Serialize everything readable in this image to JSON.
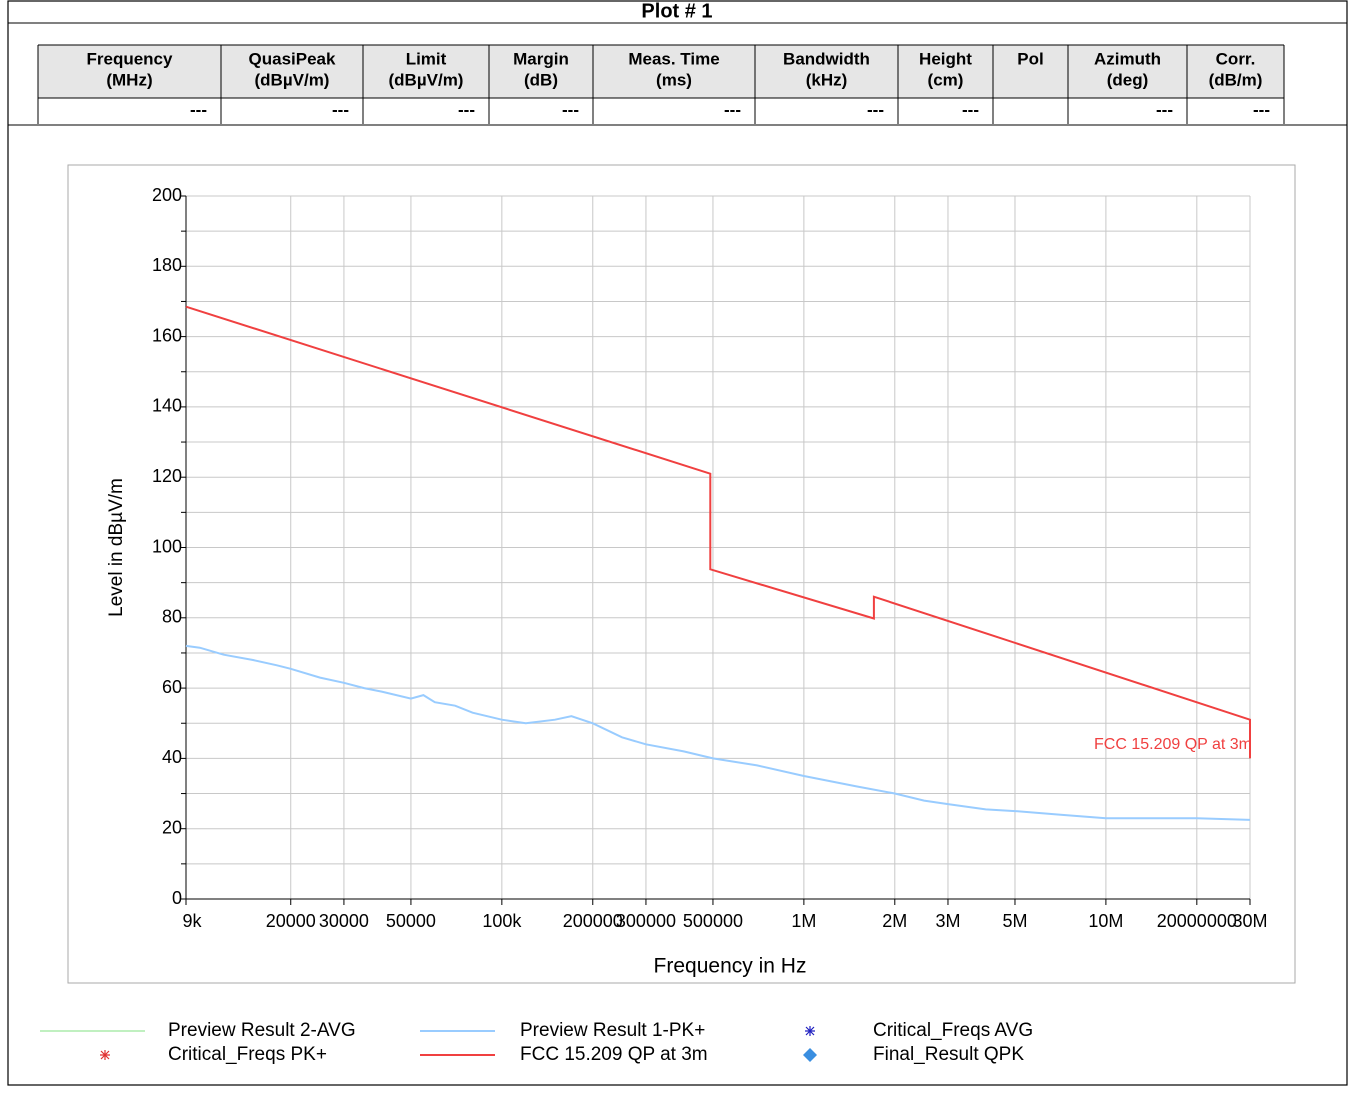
{
  "header": {
    "title": "Plot # 1"
  },
  "table": {
    "columns": [
      {
        "name": "Frequency",
        "unit": "(MHz)"
      },
      {
        "name": "QuasiPeak",
        "unit": "(dBµV/m)"
      },
      {
        "name": "Limit",
        "unit": "(dBµV/m)"
      },
      {
        "name": "Margin",
        "unit": "(dB)"
      },
      {
        "name": "Meas. Time",
        "unit": "(ms)"
      },
      {
        "name": "Bandwidth",
        "unit": "(kHz)"
      },
      {
        "name": "Height",
        "unit": "(cm)"
      },
      {
        "name": "Pol"
      },
      {
        "name": "Azimuth",
        "unit": "(deg)"
      },
      {
        "name": "Corr.",
        "unit": "(dB/m)"
      }
    ],
    "rows": [
      [
        "---",
        "---",
        "---",
        "---",
        "---",
        "---",
        "---",
        null,
        "---",
        "---"
      ]
    ]
  },
  "chart_data": {
    "type": "line",
    "xlabel": "Frequency in Hz",
    "ylabel": "Level in dBµV/m",
    "xscale": "log",
    "xlim": [
      9000,
      30000000
    ],
    "xticks": [
      {
        "value": 9000,
        "label": "9k"
      },
      20000,
      30000,
      50000,
      {
        "value": 100000,
        "label": "100k"
      },
      200000,
      300000,
      500000,
      {
        "value": 1000000,
        "label": "1M"
      },
      {
        "value": 2000000,
        "label": "2M"
      },
      {
        "value": 3000000,
        "label": "3M"
      },
      {
        "value": 5000000,
        "label": "5M"
      },
      {
        "value": 10000000,
        "label": "10M"
      },
      20000000,
      {
        "value": 30000000,
        "label": "30M"
      }
    ],
    "ylim": [
      0,
      200
    ],
    "yticks": [
      0,
      20,
      40,
      60,
      80,
      100,
      120,
      140,
      160,
      180,
      200
    ],
    "yminorticks": [
      10,
      30,
      50,
      70,
      90,
      110,
      130,
      150,
      170,
      190
    ],
    "grid": true,
    "series": [
      {
        "name": "Preview Result 2-AVG",
        "color": "#80e080",
        "marker": "line",
        "x": [],
        "values": []
      },
      {
        "name": "Preview Result 1-PK+",
        "color": "#99ccff",
        "marker": "line",
        "x": [
          9000,
          10000,
          12000,
          15000,
          18000,
          20000,
          25000,
          30000,
          35000,
          40000,
          50000,
          55000,
          60000,
          70000,
          80000,
          100000,
          120000,
          150000,
          170000,
          200000,
          250000,
          300000,
          400000,
          500000,
          700000,
          1000000,
          1500000,
          2000000,
          2500000,
          3000000,
          4000000,
          5000000,
          7000000,
          10000000,
          15000000,
          20000000,
          30000000
        ],
        "values": [
          72,
          71.5,
          69.5,
          68,
          66.5,
          65.5,
          63,
          61.5,
          60,
          59,
          57,
          58,
          56,
          55,
          53,
          51,
          50,
          51,
          52,
          50,
          46,
          44,
          42,
          40,
          38,
          35,
          32,
          30,
          28,
          27,
          25.5,
          25,
          24,
          23,
          23,
          23,
          22.5
        ]
      },
      {
        "name": "Critical_Freqs AVG",
        "color": "#2020c0",
        "marker": "star",
        "x": [],
        "values": []
      },
      {
        "name": "Critical_Freqs PK+",
        "color": "#e03030",
        "marker": "star",
        "x": [],
        "values": []
      },
      {
        "name": "FCC 15.209 QP at 3m",
        "color": "#f04040",
        "marker": "line",
        "x": [
          9000,
          490000,
          490000,
          1705000,
          1705000,
          30000000,
          30000000
        ],
        "values": [
          168.5,
          121,
          93.8,
          79.8,
          86,
          51,
          40
        ]
      },
      {
        "name": "Final_Result QPK",
        "color": "#3a8ee0",
        "marker": "diamond",
        "x": [],
        "values": []
      }
    ],
    "annotations": [
      {
        "text": "FCC 15.209 QP at 3m",
        "color": "#f04040"
      }
    ]
  }
}
